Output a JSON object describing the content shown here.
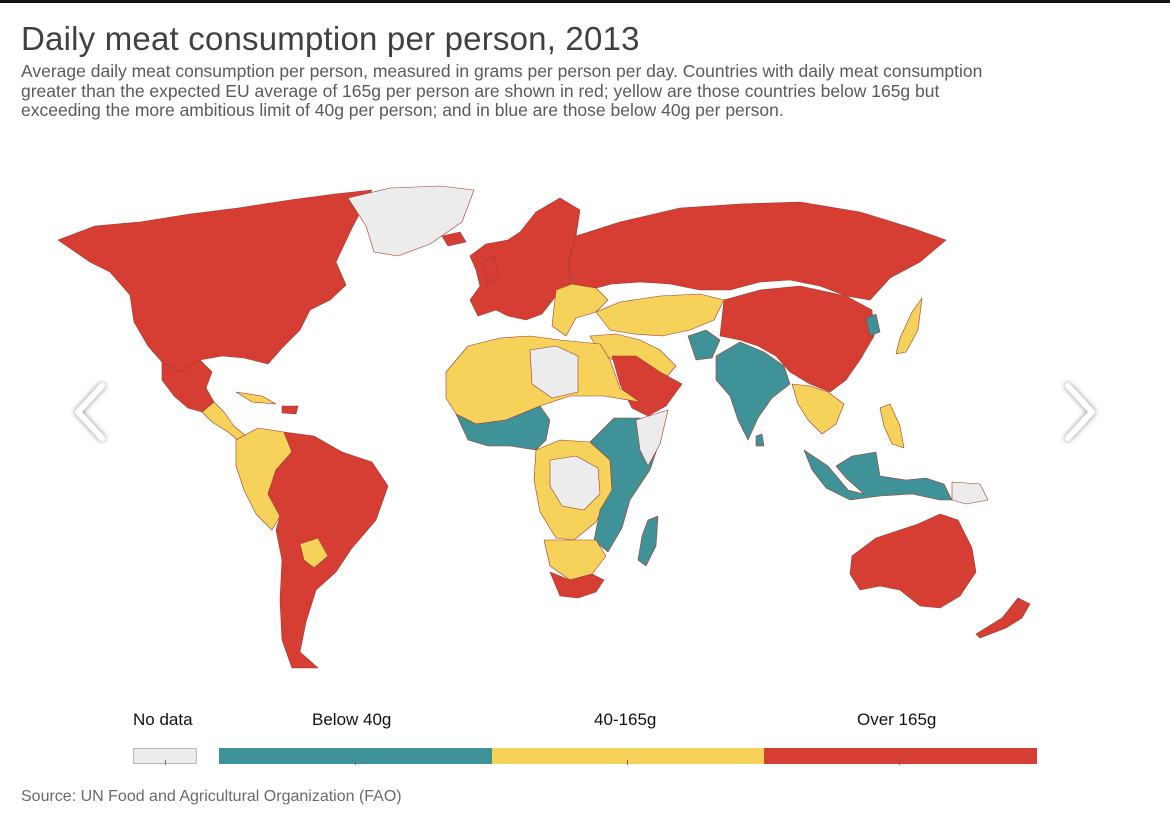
{
  "title": "Daily meat consumption per person, 2013",
  "subtitle": "Average daily meat consumption per person, measured in grams per person per day. Countries with daily meat consumption greater than the expected EU average of 165g per person are shown in red; yellow are those countries below 165g but exceeding the more ambitious limit of 40g per person; and in blue are those below 40g per person.",
  "legend": {
    "no_data": "No data",
    "below": "Below 40g",
    "mid": "40-165g",
    "over": "Over 165g"
  },
  "colors": {
    "no_data": "#ececec",
    "below": "#3f9398",
    "mid": "#f6d25a",
    "over": "#d63d33",
    "nav_arrow": "#ffffff"
  },
  "nav": {
    "prev_icon": "chevron-left-icon",
    "next_icon": "chevron-right-icon"
  },
  "source": "Source: UN Food and Agricultural Organization (FAO)"
}
